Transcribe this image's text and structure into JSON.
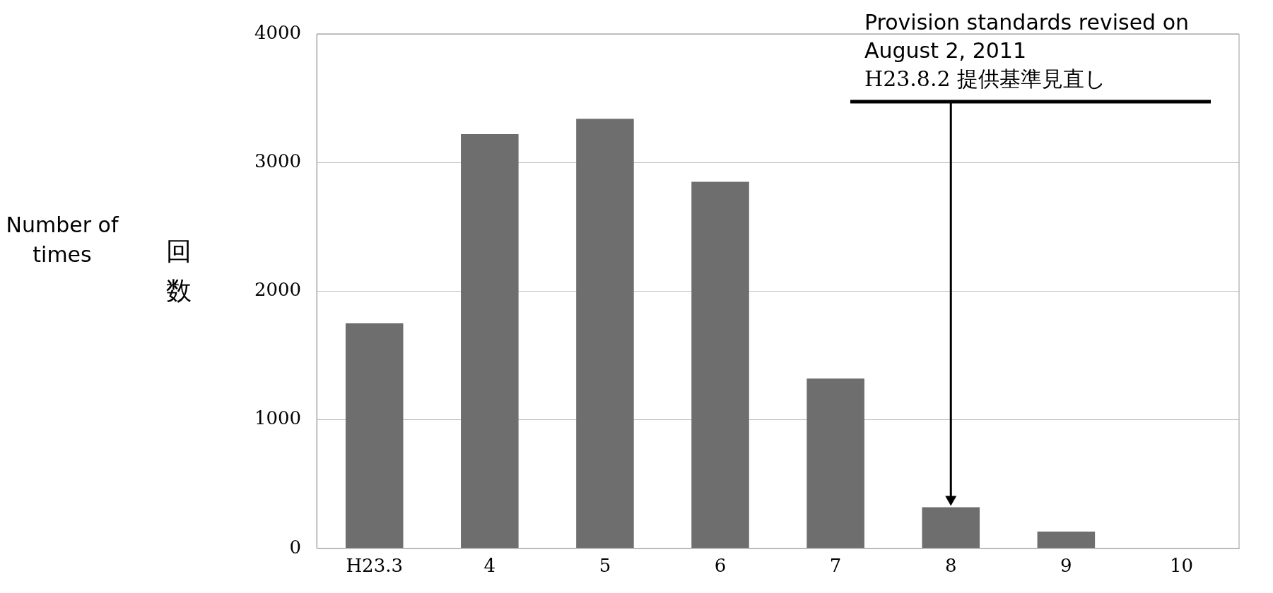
{
  "chart_data": {
    "type": "bar",
    "ylabel": "回数",
    "categories": [
      "H23.3",
      "4",
      "5",
      "6",
      "7",
      "8",
      "9",
      "10"
    ],
    "values": [
      1750,
      3220,
      3340,
      2850,
      1320,
      320,
      130,
      0
    ],
    "color": "#6e6e6e",
    "ylim": [
      0,
      4000
    ],
    "yticks": [
      0,
      1000,
      2000,
      3000,
      4000
    ],
    "grid": "y",
    "legend": false,
    "annotations": [
      "Number of times",
      "Provision standards revised on August 2, 2011",
      "H23.8.2 提供基準見直し"
    ]
  }
}
